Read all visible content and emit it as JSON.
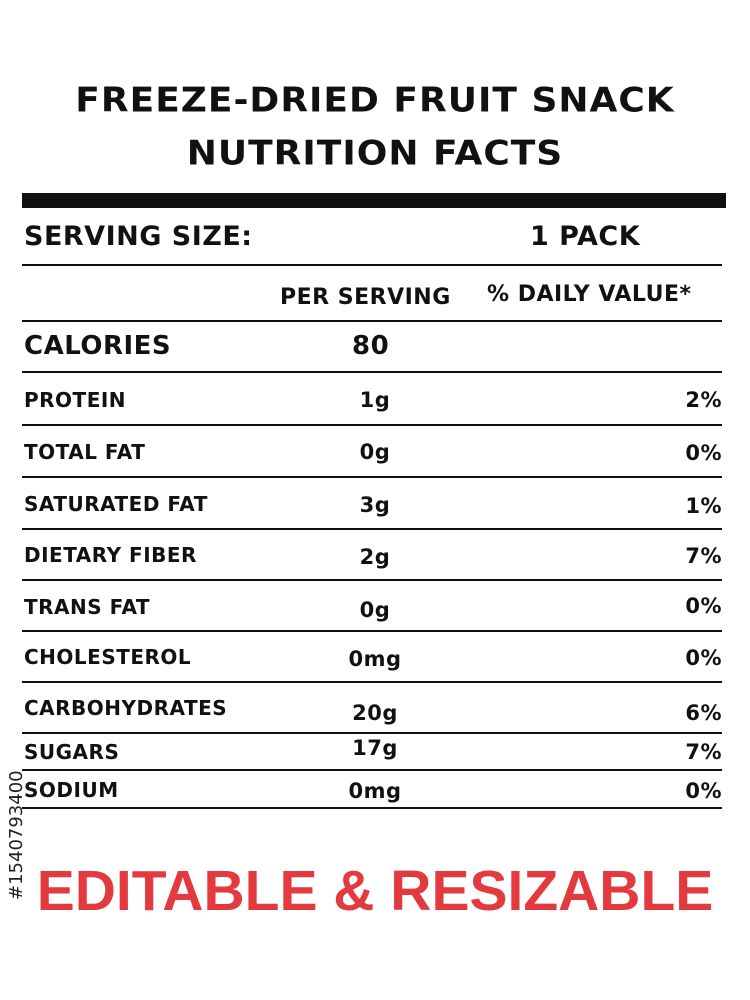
{
  "label": {
    "title_line1": "FREEZE-DRIED FRUIT SNACK",
    "title_line2": "NUTRITION FACTS",
    "serving_size_label": "SERVING SIZE:",
    "serving_size_value": "1 PACK",
    "col_per_serving": "PER SERVING",
    "col_daily_value": "% DAILY VALUE*",
    "calories_label": "CALORIES",
    "calories_value": "80",
    "rows": [
      {
        "label": "PROTEIN",
        "value": "1g",
        "dv": "2%"
      },
      {
        "label": "TOTAL FAT",
        "value": "0g",
        "dv": "0%"
      },
      {
        "label": "SATURATED FAT",
        "value": "3g",
        "dv": "1%"
      },
      {
        "label": "DIETARY FIBER",
        "value": "2g",
        "dv": "7%"
      },
      {
        "label": "TRANS FAT",
        "value": "0g",
        "dv": "0%"
      },
      {
        "label": "CHOLESTEROL",
        "value": "0mg",
        "dv": "0%"
      },
      {
        "label": "CARBOHYDRATES",
        "value": "20g",
        "dv": "6%"
      },
      {
        "label": "SUGARS",
        "value": "17g",
        "dv": "7%"
      },
      {
        "label": "SODIUM",
        "value": "0mg",
        "dv": "0%"
      }
    ]
  },
  "footer_text": "EDITABLE & RESIZABLE",
  "watermark_id": "#1540793400",
  "colors": {
    "text": "#111111",
    "footer": "#e23a3f",
    "background": "#ffffff"
  }
}
